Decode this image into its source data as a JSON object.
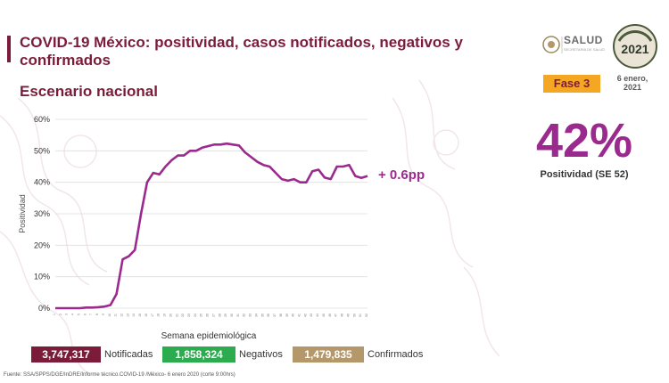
{
  "header": {
    "title": "COVID-19 México: positividad, casos notificados, negativos y confirmados",
    "subtitle": "Escenario nacional"
  },
  "branding": {
    "salud_logo_text": "SALUD",
    "salud_logo_subtext": "SECRETARÍA DE SALUD",
    "year_logo_text": "2021",
    "phase_label": "Fase 3",
    "date_label": "6 enero, 2021"
  },
  "highlight": {
    "positivity_value": "42%",
    "positivity_label": "Positividad (SE 52)",
    "change_label": "+ 0.6pp"
  },
  "totals": {
    "notified_value": "3,747,317",
    "notified_label": "Notificadas",
    "negative_value": "1,858,324",
    "negative_label": "Negativos",
    "confirmed_value": "1,479,835",
    "confirmed_label": "Confirmados"
  },
  "footer": {
    "source": "Fuente: SSA/SPPS/DGE/InDRE/Informe técnico.COVID-19 /México- 6 enero 2020 (corte 9:00hrs)"
  },
  "colors": {
    "brand": "#7b1d3a",
    "line": "#9b2a8e",
    "phase_badge": "#f5a623",
    "notified_box": "#7b1d3a",
    "negative_box": "#2dab4f",
    "confirmed_box": "#b5986a"
  },
  "chart_data": {
    "type": "line",
    "xlabel": "Semana epidemiológica",
    "ylabel": "Positividad",
    "ylim": [
      0,
      60
    ],
    "yticks": [
      "0%",
      "10%",
      "20%",
      "30%",
      "40%",
      "50%",
      "60%"
    ],
    "grid": true,
    "x": [
      1,
      2,
      3,
      4,
      5,
      6,
      7,
      8,
      9,
      10,
      11,
      12,
      13,
      14,
      15,
      16,
      17,
      18,
      19,
      20,
      21,
      22,
      23,
      24,
      25,
      26,
      27,
      28,
      29,
      30,
      31,
      32,
      33,
      34,
      35,
      36,
      37,
      38,
      39,
      40,
      41,
      42,
      43,
      44,
      45,
      46,
      47,
      48,
      49,
      50,
      51,
      52
    ],
    "series": [
      {
        "values": [
          0,
          0,
          0,
          0,
          0,
          0.2,
          0.2,
          0.3,
          0.5,
          1,
          4.5,
          15.5,
          16.5,
          18.5,
          30,
          40,
          43,
          42.5,
          45,
          47,
          48.5,
          48.5,
          50,
          50,
          51,
          51.5,
          52,
          52,
          52.3,
          52,
          51.7,
          49.5,
          48,
          46.5,
          45.5,
          45,
          43,
          41,
          40.5,
          41,
          40,
          40,
          43.5,
          44,
          41.5,
          41,
          45,
          45,
          45.5,
          42,
          41.4,
          42
        ]
      }
    ]
  }
}
